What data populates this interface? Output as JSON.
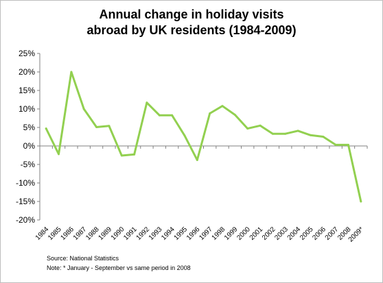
{
  "chart_data": {
    "type": "line",
    "title_line1": "Annual change in holiday visits",
    "title_line2": "abroad by UK residents (1984-2009)",
    "xlabel": "",
    "ylabel": "",
    "ylim": [
      -20,
      25
    ],
    "yticks": [
      "25%",
      "20%",
      "15%",
      "10%",
      "5%",
      "0%",
      "-5%",
      "-10%",
      "-15%",
      "-20%"
    ],
    "ytick_values": [
      25,
      20,
      15,
      10,
      5,
      0,
      -5,
      -10,
      -15,
      -20
    ],
    "categories": [
      "1984",
      "1985",
      "1986",
      "1987",
      "1988",
      "1989",
      "1990",
      "1991",
      "1992",
      "1993",
      "1994",
      "1995",
      "1996",
      "1997",
      "1998",
      "1999",
      "2000",
      "2001",
      "2002",
      "2003",
      "2004",
      "2005",
      "2006",
      "2007",
      "2008",
      "2009*"
    ],
    "values": [
      4.7,
      -2.2,
      20.0,
      10.0,
      5.1,
      5.4,
      -2.6,
      -2.3,
      11.7,
      8.3,
      8.3,
      2.8,
      -3.8,
      8.8,
      10.8,
      8.4,
      4.7,
      5.5,
      3.3,
      3.3,
      4.1,
      2.9,
      2.5,
      0.3,
      0.3,
      -15.0
    ],
    "line_color": "#92d050",
    "grid": false,
    "legend": false
  },
  "footer": {
    "source": "Source: National Statistics",
    "note": "Note: * January - September vs same period in 2008"
  }
}
